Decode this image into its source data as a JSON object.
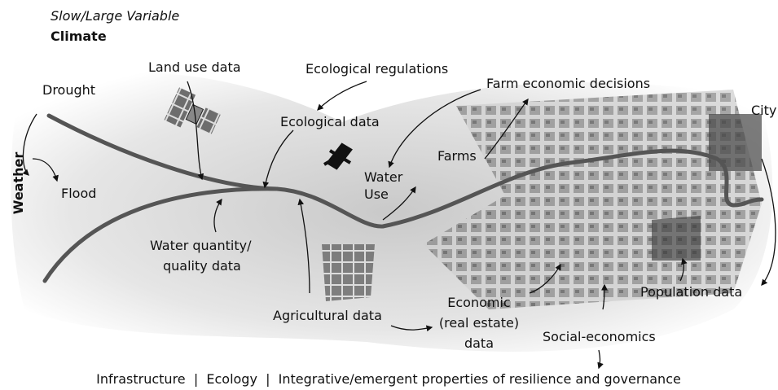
{
  "header": {
    "subtitle": "Slow/Large Variable",
    "title": "Climate"
  },
  "side_label": "Weather",
  "labels": {
    "drought": "Drought",
    "flood": "Flood",
    "land_use_data": "Land use data",
    "ecological_regulations": "Ecological regulations",
    "ecological_data": "Ecological data",
    "farm_economic_decisions": "Farm economic decisions",
    "city": "City",
    "farms": "Farms",
    "water_use": [
      "Water",
      "Use"
    ],
    "water_quantity": [
      "Water quantity/",
      "quality data"
    ],
    "agricultural_data": "Agricultural data",
    "economic": [
      "Economic",
      "(real estate)",
      "data"
    ],
    "social_economics": "Social-economics",
    "population_data": "Population data"
  },
  "footer": "Infrastructure  |  Ecology  |  Integrative/emergent properties of resilience and governance"
}
